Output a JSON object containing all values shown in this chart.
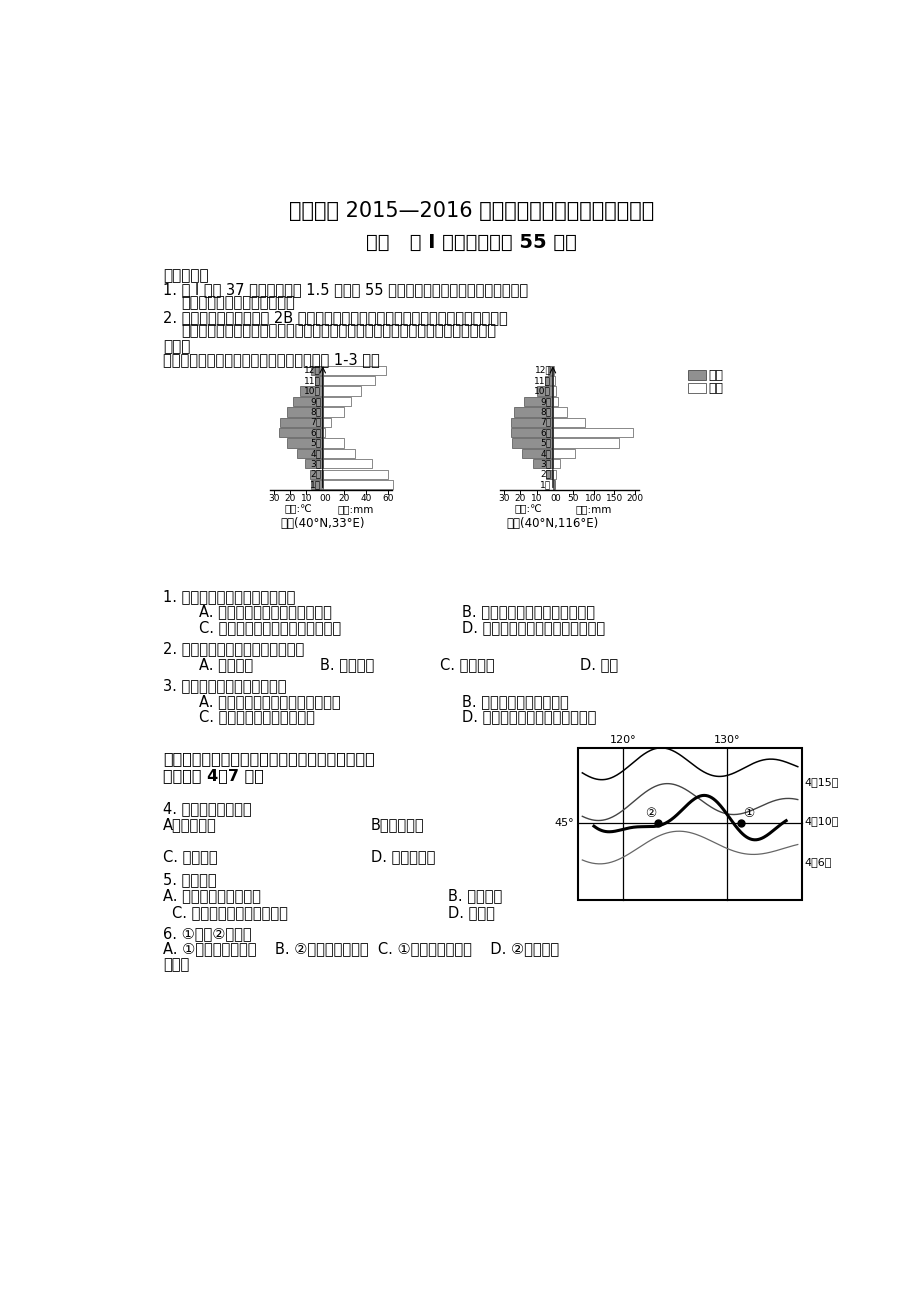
{
  "title1": "文登一中 2015—2016 学年第一学期阶段适应性练习二",
  "title2": "地理   第 I 卷（必做，共 55 分）",
  "notes_header": "注意事项：",
  "section": "选择题",
  "chart_intro": "下图为甲、乙两地的气候资料图。据此完成 1-3 题。",
  "legend_temp": "气温",
  "legend_precip": "降水",
  "chart_left_label": "甲地(40°N,33°E)",
  "chart_right_label": "乙地(40°N,116°E)",
  "left_xlabel_left": "单位:℃",
  "left_xlabel_right": "单位:mm",
  "right_xlabel_left": "单位:℃",
  "right_xlabel_right": "单位:mm",
  "months": [
    "12月",
    "11月",
    "10月",
    "9月",
    "8月",
    "7月",
    "6月",
    "5月",
    "4月",
    "3月",
    "2月",
    "1月"
  ],
  "left_temp": [
    7,
    5,
    14,
    18,
    22,
    26,
    27,
    22,
    16,
    11,
    8,
    7
  ],
  "left_precip": [
    58,
    48,
    35,
    26,
    20,
    8,
    2,
    20,
    30,
    45,
    60,
    65
  ],
  "right_temp": [
    3,
    5,
    10,
    18,
    24,
    26,
    26,
    25,
    19,
    12,
    4,
    -1
  ],
  "right_precip": [
    3,
    5,
    8,
    12,
    35,
    77,
    196,
    160,
    55,
    18,
    7,
    3
  ],
  "q1": "1. 甲、乙两地的气候类型分别为",
  "q1a": "A. 地中海气候，温带大陆性气候",
  "q1b": "B. 地中海气候，温带海洋性气候",
  "q1c": "C. 温带海洋性气候，温带季风气候",
  "q1d": "D. 温带大陆性气候，温带季风气候",
  "q2": "2. 形成两地气候差异的主要因素是",
  "q2a": "A. 太阳辐射",
  "q2b": "B. 地面状况",
  "q2c": "C. 大气环流",
  "q2d": "D. 洋流",
  "q3": "3. 关于两地的叙述，正确的是",
  "q3a": "A. 甲、乙两地间以温带荒漠带为主",
  "q3b": "B. 乙地风力侵蚀作用显著",
  "q3c": "C. 甲、乙两地均盛行西北风",
  "q3d": "D. 乙地河流以冰川融水补给为主",
  "q4": "4. 图示区域主要位于",
  "q4a": "A．淮河流域",
  "q4b": "B．华北平原",
  "q4c": "C. 东北平原",
  "q4d": "D. 三江源地区",
  "q5": "5. 图中河流",
  "q5a": "A. 参与了海陆间水循环",
  "q5b": "B. 含沙量大",
  "q5c": "C. 与该地区地形的形成无关",
  "q5d": "D. 无凌汛",
  "q6": "6. ①地与②地相比",
  "q6a": "A. ①地融雪完成较早",
  "q6b": "B. ②地白昼时间更长",
  "q6c": "C. ①地山地气温较低",
  "q6d": "D. ②地低地积",
  "q6e": "雪较少",
  "bg_color": "#ffffff",
  "text_color": "#000000",
  "gray_color": "#808080"
}
